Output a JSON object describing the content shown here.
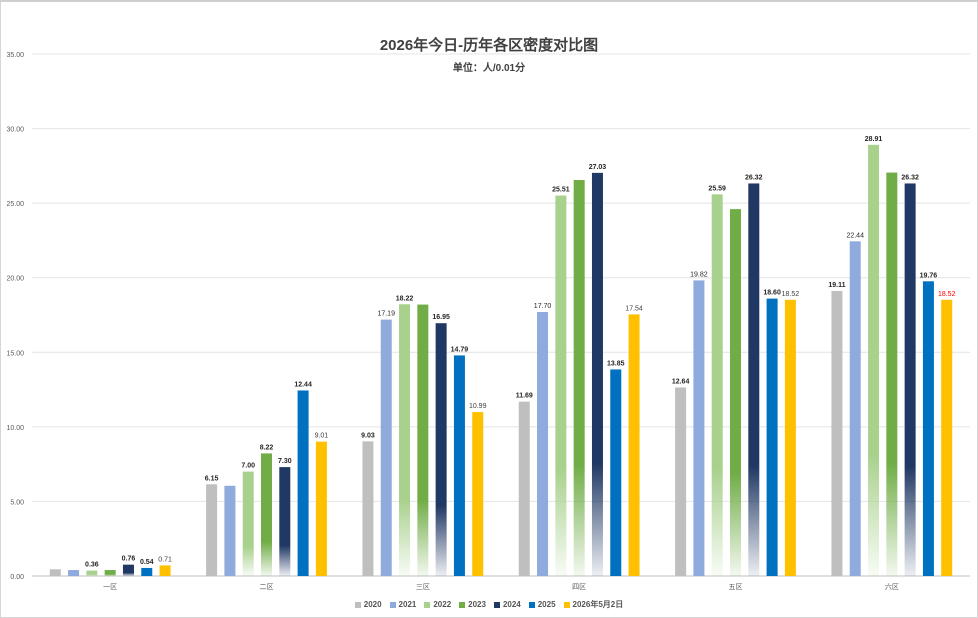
{
  "chart_data": {
    "type": "bar",
    "title": "2026年今日-历年各区密度对比图",
    "subtitle": "单位：人/0.01分",
    "categories": [
      "一区",
      "二区",
      "三区",
      "四区",
      "五区",
      "六区"
    ],
    "ylim": [
      0,
      35
    ],
    "yticks": [
      "0.00",
      "5.00",
      "10.00",
      "15.00",
      "20.00",
      "25.00",
      "30.00",
      "35.00"
    ],
    "grid": true,
    "legend_position": "bottom",
    "series": [
      {
        "name": "2020",
        "color": "#bfbfbf",
        "fill": "solid",
        "values": [
          0.45,
          6.15,
          9.03,
          11.69,
          12.64,
          19.11
        ],
        "labels": [
          "",
          "6.15",
          "9.03",
          "11.69",
          "12.64",
          "19.11"
        ],
        "label_bold": true
      },
      {
        "name": "2021",
        "color": "#8faadc",
        "fill": "solid",
        "values": [
          0.4,
          6.05,
          17.19,
          17.7,
          19.82,
          22.44
        ],
        "labels": [
          "",
          "",
          "17.19",
          "17.70",
          "19.82",
          "22.44"
        ],
        "label_bold": false
      },
      {
        "name": "2022",
        "color": "#a9d18e",
        "fill": "fade",
        "values": [
          0.36,
          7.0,
          18.22,
          25.51,
          25.59,
          28.91
        ],
        "labels": [
          "0.36",
          "7.00",
          "18.22",
          "25.51",
          "25.59",
          "28.91"
        ],
        "label_bold": true
      },
      {
        "name": "2023",
        "color": "#70ad47",
        "fill": "fade",
        "values": [
          0.4,
          8.22,
          18.2,
          26.55,
          24.6,
          27.05
        ],
        "labels": [
          "",
          "8.22",
          "",
          "",
          "",
          ""
        ],
        "label_bold": true
      },
      {
        "name": "2024",
        "color": "#203864",
        "fill": "fade",
        "values": [
          0.76,
          7.3,
          16.95,
          27.03,
          26.32,
          26.32
        ],
        "labels": [
          "0.76",
          "7.30",
          "16.95",
          "27.03",
          "26.32",
          "26.32"
        ],
        "label_bold": true
      },
      {
        "name": "2025",
        "color": "#0070c0",
        "fill": "solid",
        "values": [
          0.54,
          12.44,
          14.79,
          13.85,
          18.6,
          19.76
        ],
        "labels": [
          "0.54",
          "12.44",
          "14.79",
          "13.85",
          "18.60",
          "19.76"
        ],
        "label_bold": true
      },
      {
        "name": "2026年5月2日",
        "color": "#ffc000",
        "fill": "solid",
        "values": [
          0.71,
          9.01,
          10.99,
          17.54,
          18.52,
          18.52
        ],
        "labels": [
          "0.71",
          "9.01",
          "10.99",
          "17.54",
          "18.52",
          "18.52"
        ],
        "label_bold": false,
        "label_colors": [
          "#404040",
          "#404040",
          "#404040",
          "#404040",
          "#404040",
          "#ff0000"
        ]
      }
    ]
  }
}
